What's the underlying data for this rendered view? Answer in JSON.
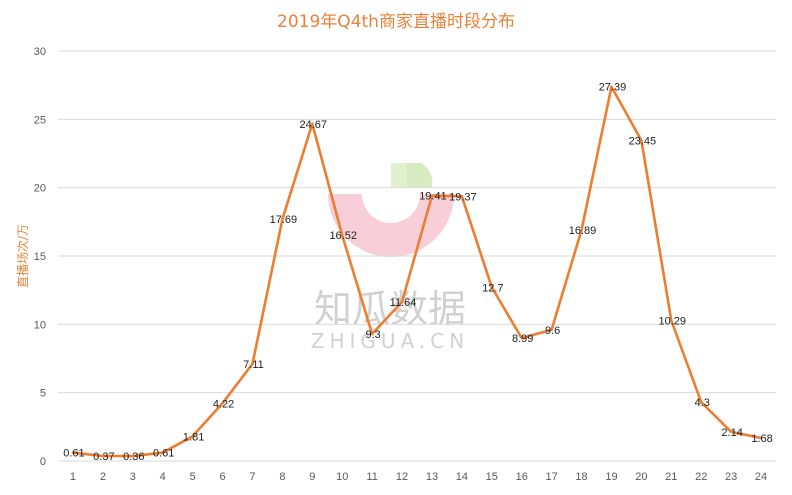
{
  "watermark": {
    "brand_cn": "知瓜数据",
    "brand_en": "ZHIGUA.CN"
  },
  "chart_data": {
    "type": "line",
    "title": "2019年Q4th商家直播时段分布",
    "xlabel": "",
    "ylabel": "直播场次/万",
    "categories": [
      "1",
      "2",
      "3",
      "4",
      "5",
      "6",
      "7",
      "8",
      "9",
      "10",
      "11",
      "12",
      "13",
      "14",
      "15",
      "16",
      "17",
      "18",
      "19",
      "20",
      "21",
      "22",
      "23",
      "24"
    ],
    "values": [
      0.61,
      0.37,
      0.36,
      0.61,
      1.81,
      4.22,
      7.11,
      17.69,
      24.67,
      16.52,
      9.3,
      11.64,
      19.41,
      19.37,
      12.7,
      8.99,
      9.6,
      16.89,
      27.39,
      23.45,
      10.29,
      4.3,
      2.14,
      1.68
    ],
    "value_labels": [
      "0.61",
      "0.37",
      "0.36",
      "0.61",
      "1.81",
      "4.22",
      "7.11",
      "17.69",
      "24.67",
      "16.52",
      "9.3",
      "11.64",
      "19.41",
      "19.37",
      "12.7",
      "8.99",
      "9.6",
      "16.89",
      "27.39",
      "23.45",
      "10.29",
      "4.3",
      "2.14",
      "1.68"
    ],
    "ylim": [
      0,
      30
    ],
    "yticks": [
      "0",
      "5",
      "10",
      "15",
      "20",
      "25",
      "30"
    ],
    "grid": true,
    "legend": "none",
    "colors": {
      "line": "#ed7d31",
      "grid": "#d9d9d9",
      "title": "#e8823a"
    }
  }
}
